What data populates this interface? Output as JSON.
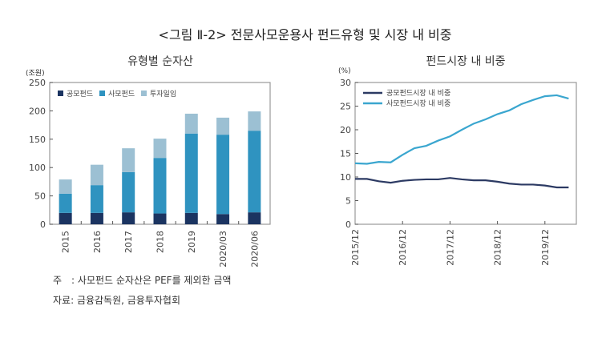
{
  "title": "<그림 Ⅱ-2> 전문사모운용사 펀드유형 및 시장 내 비중",
  "note": "주　: 사모펀드 순자산은 PEF를 제외한 금액",
  "source": "자료: 금융감독원, 금융투자협회",
  "chart_data": [
    {
      "type": "bar",
      "stacked": true,
      "title": "유형별 순자산",
      "ylabel": "(조원)",
      "ylim": [
        0,
        250
      ],
      "yticks": [
        0,
        50,
        100,
        150,
        200,
        250
      ],
      "legend": "top-left",
      "categories": [
        "2015",
        "2016",
        "2017",
        "2018",
        "2019",
        "2020/03",
        "2020/06"
      ],
      "series": [
        {
          "name": "공모펀드",
          "color": "#1b3461",
          "values": [
            20,
            20,
            21,
            19,
            20,
            18,
            21
          ]
        },
        {
          "name": "사모펀드",
          "color": "#2f93c0",
          "values": [
            34,
            49,
            71,
            98,
            140,
            140,
            144
          ]
        },
        {
          "name": "투자일임",
          "color": "#9cc0d3",
          "values": [
            25,
            36,
            42,
            34,
            35,
            30,
            34
          ]
        }
      ]
    },
    {
      "type": "line",
      "title": "펀드시장 내 비중",
      "ylabel": "(%)",
      "ylim": [
        0,
        30
      ],
      "yticks": [
        0,
        5,
        10,
        15,
        20,
        25,
        30
      ],
      "legend": "top-left",
      "xticks": [
        "2015/12",
        "2016/12",
        "2017/12",
        "2018/12",
        "2019/12"
      ],
      "x": [
        "2015/12",
        "2016/03",
        "2016/06",
        "2016/09",
        "2016/12",
        "2017/03",
        "2017/06",
        "2017/09",
        "2017/12",
        "2018/03",
        "2018/06",
        "2018/09",
        "2018/12",
        "2019/03",
        "2019/06",
        "2019/09",
        "2019/12",
        "2020/03",
        "2020/06"
      ],
      "series": [
        {
          "name": "공모펀드시장 내 비중",
          "color": "#2c3a63",
          "values": [
            9.6,
            9.6,
            9.1,
            8.8,
            9.2,
            9.4,
            9.5,
            9.5,
            9.8,
            9.5,
            9.3,
            9.3,
            9.0,
            8.6,
            8.4,
            8.4,
            8.2,
            7.8,
            7.8
          ]
        },
        {
          "name": "사모펀드시장 내 비중",
          "color": "#3aa6cf",
          "values": [
            12.9,
            12.8,
            13.2,
            13.1,
            14.7,
            16.1,
            16.6,
            17.7,
            18.6,
            20.0,
            21.3,
            22.2,
            23.3,
            24.1,
            25.4,
            26.3,
            27.1,
            27.3,
            26.6
          ]
        }
      ]
    }
  ]
}
